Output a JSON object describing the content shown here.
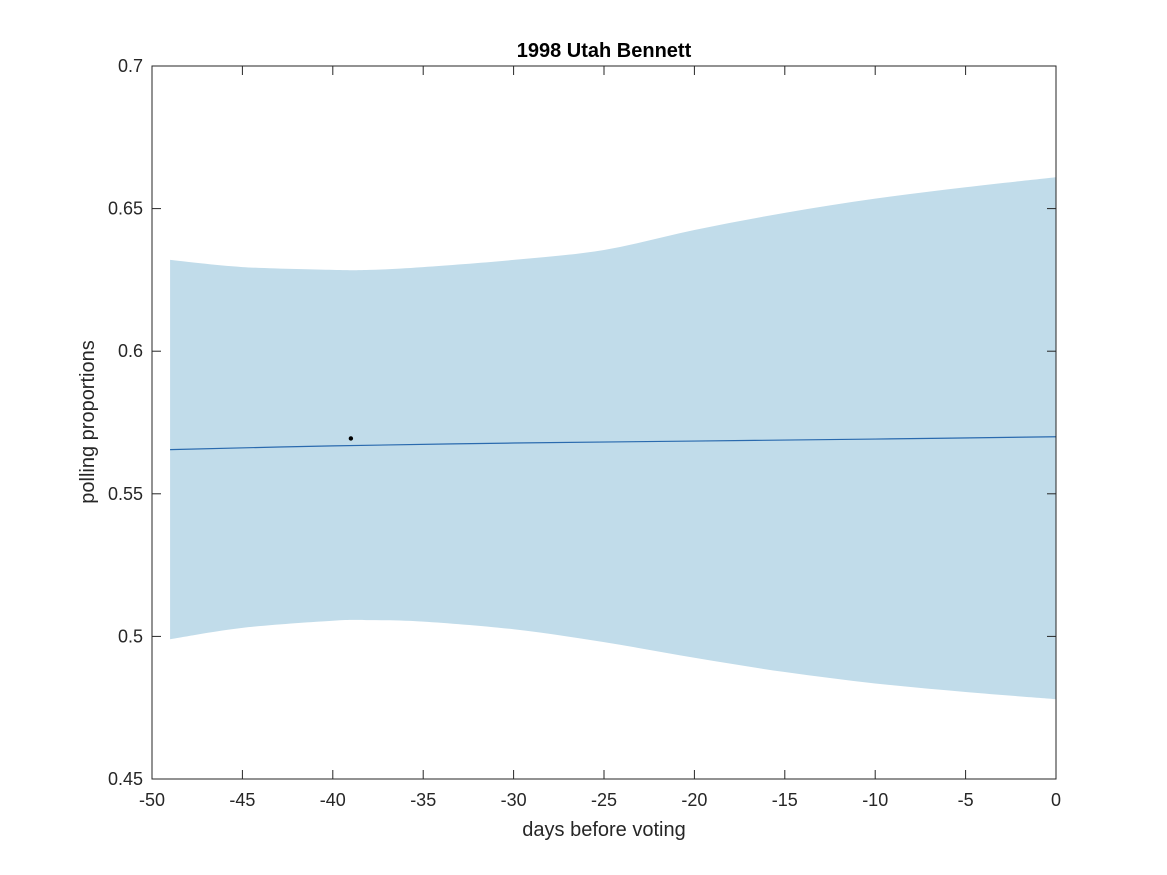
{
  "chart_data": {
    "type": "line",
    "title": "1998 Utah Bennett",
    "xlabel": "days before voting",
    "ylabel": "polling proportions",
    "xlim": [
      -50,
      0
    ],
    "ylim": [
      0.45,
      0.7
    ],
    "xticks": [
      -50,
      -45,
      -40,
      -35,
      -30,
      -25,
      -20,
      -15,
      -10,
      -5,
      0
    ],
    "xtick_labels": [
      "-50",
      "-45",
      "-40",
      "-35",
      "-30",
      "-25",
      "-20",
      "-15",
      "-10",
      "-5",
      "0"
    ],
    "yticks": [
      0.45,
      0.5,
      0.55,
      0.6,
      0.65,
      0.7
    ],
    "ytick_labels": [
      "0.45",
      "0.5",
      "0.55",
      "0.6",
      "0.65",
      "0.7"
    ],
    "grid": false,
    "band": {
      "color": "#c1dcea",
      "x": [
        -49,
        -45,
        -40,
        -38,
        -35,
        -30,
        -25,
        -20,
        -15,
        -10,
        -5,
        0
      ],
      "upper": [
        0.632,
        0.6295,
        0.6285,
        0.6285,
        0.6295,
        0.632,
        0.6355,
        0.6425,
        0.6485,
        0.6535,
        0.6575,
        0.661
      ],
      "lower": [
        0.499,
        0.503,
        0.5055,
        0.5057,
        0.5052,
        0.5025,
        0.498,
        0.4925,
        0.4875,
        0.4835,
        0.4805,
        0.478
      ]
    },
    "series": [
      {
        "color": "#2a6aae",
        "x": [
          -49,
          -40,
          -30,
          -20,
          -10,
          0
        ],
        "y": [
          0.5655,
          0.5668,
          0.5678,
          0.5685,
          0.5692,
          0.57
        ]
      }
    ],
    "points": [
      {
        "x": -39,
        "y": 0.5694,
        "color": "#000000"
      }
    ]
  }
}
